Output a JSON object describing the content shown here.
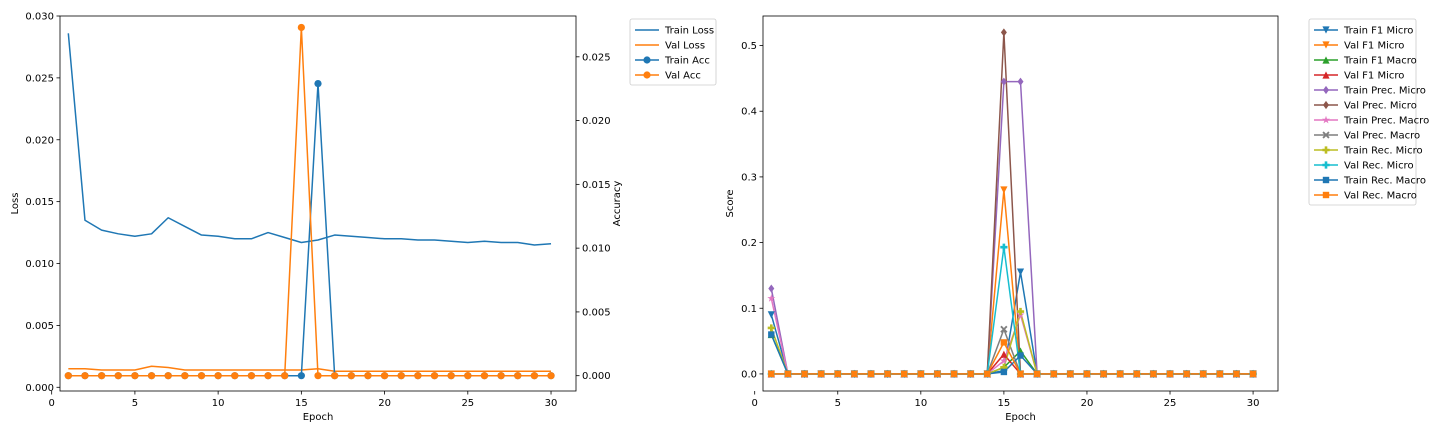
{
  "chart_data": [
    {
      "type": "line",
      "xlabel": "Epoch",
      "ylabel": "Loss",
      "ylabel_right": "Accuracy",
      "x": [
        1,
        2,
        3,
        4,
        5,
        6,
        7,
        8,
        9,
        10,
        11,
        12,
        13,
        14,
        15,
        16,
        17,
        18,
        19,
        20,
        21,
        22,
        23,
        24,
        25,
        26,
        27,
        28,
        29,
        30
      ],
      "xlim": [
        0.5,
        31.5
      ],
      "ylim": [
        -0.0003,
        0.03
      ],
      "ylim_right": [
        -0.0012,
        0.0282
      ],
      "x_ticks": [
        0,
        5,
        10,
        15,
        20,
        25,
        30
      ],
      "x_tick_labels": [
        "0",
        "5",
        "10",
        "15",
        "20",
        "25",
        "30"
      ],
      "y_ticks": [
        0.0,
        0.005,
        0.01,
        0.015,
        0.02,
        0.025,
        0.03
      ],
      "y_tick_labels": [
        "0.000",
        "0.005",
        "0.010",
        "0.015",
        "0.020",
        "0.025",
        "0.030"
      ],
      "y_ticks_right": [
        0.0,
        0.005,
        0.01,
        0.015,
        0.02,
        0.025
      ],
      "y_tick_labels_right": [
        "0.000",
        "0.005",
        "0.010",
        "0.015",
        "0.020",
        "0.025"
      ],
      "grid": false,
      "legend_placement": "outside-top-right",
      "series": [
        {
          "name": "Train Loss",
          "axis": "left",
          "color": "#1f77b4",
          "marker": "none",
          "values": [
            0.0286,
            0.0135,
            0.0127,
            0.0124,
            0.0122,
            0.0124,
            0.0137,
            0.013,
            0.0123,
            0.0122,
            0.012,
            0.012,
            0.0125,
            0.0121,
            0.0117,
            0.0119,
            0.0123,
            0.0122,
            0.0121,
            0.012,
            0.012,
            0.0119,
            0.0119,
            0.0118,
            0.0117,
            0.0118,
            0.0117,
            0.0117,
            0.0115,
            0.0116
          ]
        },
        {
          "name": "Val Loss",
          "axis": "left",
          "color": "#ff7f0e",
          "marker": "none",
          "values": [
            0.0015,
            0.0015,
            0.0014,
            0.0014,
            0.0014,
            0.0017,
            0.0016,
            0.0014,
            0.0014,
            0.0014,
            0.0014,
            0.0014,
            0.0014,
            0.0014,
            0.0014,
            0.0015,
            0.0013,
            0.0013,
            0.0013,
            0.0013,
            0.0013,
            0.0013,
            0.0013,
            0.0013,
            0.0013,
            0.0013,
            0.0013,
            0.0013,
            0.0013,
            0.0013
          ]
        },
        {
          "name": "Train Acc",
          "axis": "right",
          "color": "#1f77b4",
          "marker": "circle",
          "values": [
            0,
            0,
            0,
            0,
            0,
            0,
            0,
            0,
            0,
            0,
            0,
            0,
            0,
            0,
            0,
            0.0229,
            0,
            0,
            0,
            0,
            0,
            0,
            0,
            0,
            0,
            0,
            0,
            0,
            0,
            0
          ]
        },
        {
          "name": "Val Acc",
          "axis": "right",
          "color": "#ff7f0e",
          "marker": "circle",
          "values": [
            0,
            0,
            0,
            0,
            0,
            0,
            0,
            0,
            0,
            0,
            0,
            0,
            0,
            0,
            0.0273,
            0,
            0,
            0,
            0,
            0,
            0,
            0,
            0,
            0,
            0,
            0,
            0,
            0,
            0,
            0
          ]
        }
      ]
    },
    {
      "type": "line",
      "xlabel": "Epoch",
      "ylabel": "Score",
      "x": [
        1,
        2,
        3,
        4,
        5,
        6,
        7,
        8,
        9,
        10,
        11,
        12,
        13,
        14,
        15,
        16,
        17,
        18,
        19,
        20,
        21,
        22,
        23,
        24,
        25,
        26,
        27,
        28,
        29,
        30
      ],
      "xlim": [
        0.5,
        31.5
      ],
      "ylim": [
        -0.026,
        0.545
      ],
      "x_ticks": [
        0,
        5,
        10,
        15,
        20,
        25,
        30
      ],
      "x_tick_labels": [
        "0",
        "5",
        "10",
        "15",
        "20",
        "25",
        "30"
      ],
      "y_ticks": [
        0.0,
        0.1,
        0.2,
        0.3,
        0.4,
        0.5
      ],
      "y_tick_labels": [
        "0.0",
        "0.1",
        "0.2",
        "0.3",
        "0.4",
        "0.5"
      ],
      "grid": false,
      "legend_placement": "outside-top-right",
      "series": [
        {
          "name": "Train F1 Micro",
          "color": "#1f77b4",
          "marker": "triangle-down",
          "values": [
            0.09,
            0,
            0,
            0,
            0,
            0,
            0,
            0,
            0,
            0,
            0,
            0,
            0,
            0,
            0.005,
            0.155,
            0,
            0,
            0,
            0,
            0,
            0,
            0,
            0,
            0,
            0,
            0,
            0,
            0,
            0
          ]
        },
        {
          "name": "Val F1 Micro",
          "color": "#ff7f0e",
          "marker": "triangle-down",
          "values": [
            0.0,
            0,
            0,
            0,
            0,
            0,
            0,
            0,
            0,
            0,
            0,
            0,
            0,
            0,
            0.28,
            0.0,
            0,
            0,
            0,
            0,
            0,
            0,
            0,
            0,
            0,
            0,
            0,
            0,
            0,
            0
          ]
        },
        {
          "name": "Train F1 Macro",
          "color": "#2ca02c",
          "marker": "triangle-up",
          "values": [
            0.06,
            0,
            0,
            0,
            0,
            0,
            0,
            0,
            0,
            0,
            0,
            0,
            0,
            0,
            0.01,
            0.035,
            0,
            0,
            0,
            0,
            0,
            0,
            0,
            0,
            0,
            0,
            0,
            0,
            0,
            0
          ]
        },
        {
          "name": "Val F1 Micro",
          "color": "#d62728",
          "marker": "triangle-up",
          "values": [
            0.0,
            0,
            0,
            0,
            0,
            0,
            0,
            0,
            0,
            0,
            0,
            0,
            0,
            0,
            0.03,
            0.0,
            0,
            0,
            0,
            0,
            0,
            0,
            0,
            0,
            0,
            0,
            0,
            0,
            0,
            0
          ]
        },
        {
          "name": "Train Prec. Micro",
          "color": "#9467bd",
          "marker": "diamond",
          "values": [
            0.13,
            0,
            0,
            0,
            0,
            0,
            0,
            0,
            0,
            0,
            0,
            0,
            0,
            0,
            0.445,
            0.445,
            0,
            0,
            0,
            0,
            0,
            0,
            0,
            0,
            0,
            0,
            0,
            0,
            0,
            0
          ]
        },
        {
          "name": "Val Prec. Micro",
          "color": "#8c564b",
          "marker": "diamond",
          "values": [
            0.0,
            0,
            0,
            0,
            0,
            0,
            0,
            0,
            0,
            0,
            0,
            0,
            0,
            0,
            0.52,
            0.0,
            0,
            0,
            0,
            0,
            0,
            0,
            0,
            0,
            0,
            0,
            0,
            0,
            0,
            0
          ]
        },
        {
          "name": "Train Prec. Macro",
          "color": "#e377c2",
          "marker": "star",
          "values": [
            0.115,
            0,
            0,
            0,
            0,
            0,
            0,
            0,
            0,
            0,
            0,
            0,
            0,
            0,
            0.02,
            0.09,
            0,
            0,
            0,
            0,
            0,
            0,
            0,
            0,
            0,
            0,
            0,
            0,
            0,
            0
          ]
        },
        {
          "name": "Val Prec. Macro",
          "color": "#7f7f7f",
          "marker": "x",
          "values": [
            0.0,
            0,
            0,
            0,
            0,
            0,
            0,
            0,
            0,
            0,
            0,
            0,
            0,
            0,
            0.068,
            0.0,
            0,
            0,
            0,
            0,
            0,
            0,
            0,
            0,
            0,
            0,
            0,
            0,
            0,
            0
          ]
        },
        {
          "name": "Train Rec. Micro",
          "color": "#bcbd22",
          "marker": "plus",
          "values": [
            0.07,
            0,
            0,
            0,
            0,
            0,
            0,
            0,
            0,
            0,
            0,
            0,
            0,
            0,
            0.01,
            0.095,
            0,
            0,
            0,
            0,
            0,
            0,
            0,
            0,
            0,
            0,
            0,
            0,
            0,
            0
          ]
        },
        {
          "name": "Val Rec. Micro",
          "color": "#17becf",
          "marker": "plus",
          "values": [
            0.0,
            0,
            0,
            0,
            0,
            0,
            0,
            0,
            0,
            0,
            0,
            0,
            0,
            0,
            0.193,
            0.0,
            0,
            0,
            0,
            0,
            0,
            0,
            0,
            0,
            0,
            0,
            0,
            0,
            0,
            0
          ]
        },
        {
          "name": "Train Rec. Macro",
          "color": "#1f77b4",
          "marker": "square",
          "values": [
            0.06,
            0,
            0,
            0,
            0,
            0,
            0,
            0,
            0,
            0,
            0,
            0,
            0,
            0,
            0.003,
            0.028,
            0,
            0,
            0,
            0,
            0,
            0,
            0,
            0,
            0,
            0,
            0,
            0,
            0,
            0
          ]
        },
        {
          "name": "Val Rec. Macro",
          "color": "#ff7f0e",
          "marker": "square",
          "values": [
            0.0,
            0,
            0,
            0,
            0,
            0,
            0,
            0,
            0,
            0,
            0,
            0,
            0,
            0,
            0.048,
            0.0,
            0,
            0,
            0,
            0,
            0,
            0,
            0,
            0,
            0,
            0,
            0,
            0,
            0,
            0
          ]
        }
      ]
    }
  ]
}
